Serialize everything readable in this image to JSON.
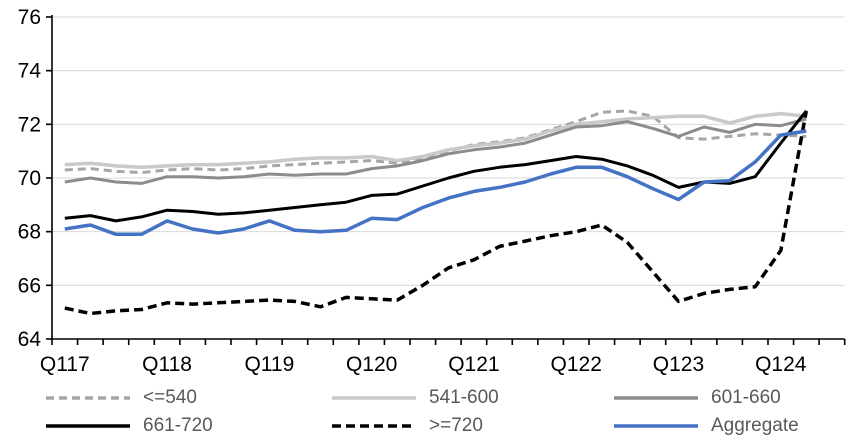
{
  "chart_data": {
    "type": "line",
    "title": "",
    "xlabel": "",
    "ylabel": "",
    "grid": true,
    "legend_position": "bottom",
    "categories": [
      "Q1 2017",
      "Q2 2017",
      "Q3 2017",
      "Q4 2017",
      "Q1 2018",
      "Q2 2018",
      "Q3 2018",
      "Q4 2018",
      "Q1 2019",
      "Q2 2019",
      "Q3 2019",
      "Q4 2019",
      "Q1 2020",
      "Q2 2020",
      "Q3 2020",
      "Q4 2020",
      "Q1 2021",
      "Q2 2021",
      "Q3 2021",
      "Q4 2021",
      "Q1 2022",
      "Q2 2022",
      "Q3 2022",
      "Q4 2022",
      "Q1 2023",
      "Q2 2023",
      "Q3 2023",
      "Q4 2023",
      "Q1 2024",
      "Q2 2024"
    ],
    "x_tick_labels": [
      "Q117",
      "Q118",
      "Q119",
      "Q120",
      "Q121",
      "Q122",
      "Q123",
      "Q124"
    ],
    "y_axis": {
      "min": 64,
      "max": 76,
      "step": 2,
      "tick_labels": [
        "64",
        "66",
        "68",
        "70",
        "72",
        "74",
        "76"
      ]
    },
    "series": [
      {
        "name": "<=540",
        "color": "#A6A6A6",
        "dash": "8 5",
        "width": 3,
        "values": [
          70.3,
          70.35,
          70.25,
          70.2,
          70.3,
          70.35,
          70.3,
          70.35,
          70.45,
          70.5,
          70.55,
          70.6,
          70.65,
          70.55,
          70.75,
          71.0,
          71.25,
          71.35,
          71.5,
          71.8,
          72.1,
          72.45,
          72.5,
          72.3,
          71.5,
          71.45,
          71.55,
          71.65,
          71.6,
          71.55
        ]
      },
      {
        "name": "541-600",
        "color": "#C9C9C9",
        "dash": null,
        "width": 3.5,
        "values": [
          70.5,
          70.55,
          70.45,
          70.4,
          70.45,
          70.5,
          70.5,
          70.55,
          70.6,
          70.7,
          70.75,
          70.75,
          70.8,
          70.65,
          70.8,
          71.05,
          71.2,
          71.3,
          71.45,
          71.75,
          72.0,
          72.1,
          72.2,
          72.25,
          72.3,
          72.3,
          72.05,
          72.3,
          72.4,
          72.3
        ]
      },
      {
        "name": "601-660",
        "color": "#8C8C8C",
        "dash": null,
        "width": 3,
        "values": [
          69.85,
          70.0,
          69.85,
          69.8,
          70.05,
          70.05,
          70.0,
          70.05,
          70.15,
          70.1,
          70.15,
          70.15,
          70.35,
          70.45,
          70.65,
          70.9,
          71.05,
          71.15,
          71.3,
          71.6,
          71.9,
          71.95,
          72.1,
          71.85,
          71.55,
          71.9,
          71.7,
          72.0,
          71.95,
          72.2
        ]
      },
      {
        "name": "661-720",
        "color": "#000000",
        "dash": null,
        "width": 3,
        "values": [
          68.5,
          68.6,
          68.4,
          68.55,
          68.8,
          68.75,
          68.65,
          68.7,
          68.8,
          68.9,
          69.0,
          69.1,
          69.35,
          69.4,
          69.7,
          70.0,
          70.25,
          70.4,
          70.5,
          70.65,
          70.8,
          70.7,
          70.45,
          70.1,
          69.65,
          69.85,
          69.8,
          70.05,
          71.3,
          72.5
        ]
      },
      {
        "name": ">=720",
        "color": "#000000",
        "dash": "9 5",
        "width": 3.5,
        "values": [
          65.15,
          64.95,
          65.05,
          65.1,
          65.35,
          65.3,
          65.35,
          65.4,
          65.45,
          65.4,
          65.2,
          65.55,
          65.5,
          65.45,
          66.0,
          66.65,
          66.95,
          67.45,
          67.65,
          67.85,
          68.0,
          68.25,
          67.6,
          66.5,
          65.4,
          65.7,
          65.85,
          65.95,
          67.3,
          72.5
        ]
      },
      {
        "name": "Aggregate",
        "color": "#4472C4",
        "dash": null,
        "width": 3.5,
        "values": [
          68.1,
          68.25,
          67.9,
          67.9,
          68.4,
          68.1,
          67.95,
          68.1,
          68.4,
          68.05,
          68.0,
          68.05,
          68.5,
          68.45,
          68.9,
          69.25,
          69.5,
          69.65,
          69.85,
          70.15,
          70.4,
          70.4,
          70.05,
          69.6,
          69.2,
          69.85,
          69.9,
          70.6,
          71.6,
          71.75
        ]
      }
    ],
    "colors": {
      "gridline": "#D9D9D9",
      "axis": "#000000",
      "axis_label": "#000000",
      "legend_text": "#595959"
    }
  }
}
